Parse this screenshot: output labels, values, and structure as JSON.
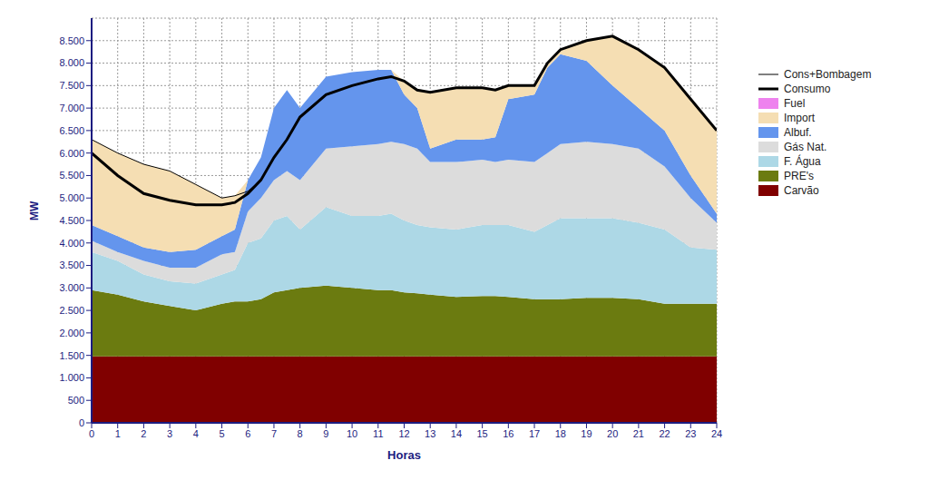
{
  "chart_data": {
    "type": "area",
    "xlabel": "Horas",
    "ylabel": "MW",
    "stacked": true,
    "grid": true,
    "legend": "right",
    "x": [
      0,
      1,
      2,
      3,
      4,
      5,
      5.5,
      6,
      6.5,
      7,
      7.5,
      8,
      9,
      10,
      11,
      11.5,
      12,
      12.5,
      13,
      14,
      15,
      15.5,
      16,
      17,
      17.5,
      18,
      19,
      20,
      21,
      22,
      23,
      24
    ],
    "xlim": [
      0,
      24
    ],
    "xticks": [
      0,
      1,
      2,
      3,
      4,
      5,
      6,
      7,
      8,
      9,
      10,
      11,
      12,
      13,
      14,
      15,
      16,
      17,
      18,
      19,
      20,
      21,
      22,
      23,
      24
    ],
    "ylim": [
      0,
      9000
    ],
    "yticks": [
      0,
      500,
      {
        "value": 1000,
        "label": "1.000"
      },
      {
        "value": 1500,
        "label": "1.500"
      },
      {
        "value": 2000,
        "label": "2.000"
      },
      {
        "value": 2500,
        "label": "2.500"
      },
      {
        "value": 3000,
        "label": "3.000"
      },
      {
        "value": 3500,
        "label": "3.500"
      },
      {
        "value": 4000,
        "label": "4.000"
      },
      {
        "value": 4500,
        "label": "4.500"
      },
      {
        "value": 5000,
        "label": "5.000"
      },
      {
        "value": 5500,
        "label": "5.500"
      },
      {
        "value": 6000,
        "label": "6.000"
      },
      {
        "value": 6500,
        "label": "6.500"
      },
      {
        "value": 7000,
        "label": "7.000"
      },
      {
        "value": 7500,
        "label": "7.500"
      },
      {
        "value": 8000,
        "label": "8.000"
      },
      {
        "value": 8500,
        "label": "8.500"
      }
    ],
    "series": [
      {
        "name": "Carvão",
        "type": "area",
        "color": "#800000",
        "values": [
          1480,
          1480,
          1480,
          1480,
          1480,
          1480,
          1480,
          1480,
          1480,
          1480,
          1480,
          1480,
          1480,
          1480,
          1480,
          1480,
          1480,
          1480,
          1480,
          1480,
          1480,
          1480,
          1480,
          1480,
          1480,
          1480,
          1480,
          1480,
          1480,
          1480,
          1480,
          1480
        ]
      },
      {
        "name": "PRE's",
        "type": "area",
        "color": "#6b7b10",
        "values": [
          1470,
          1370,
          1220,
          1120,
          1020,
          1170,
          1220,
          1220,
          1270,
          1420,
          1470,
          1520,
          1570,
          1520,
          1470,
          1470,
          1420,
          1400,
          1370,
          1320,
          1340,
          1340,
          1320,
          1270,
          1270,
          1270,
          1300,
          1300,
          1270,
          1170,
          1170,
          1170
        ]
      },
      {
        "name": "F. Água",
        "type": "area",
        "color": "#add8e6",
        "values": [
          850,
          750,
          600,
          550,
          600,
          650,
          700,
          1300,
          1350,
          1600,
          1650,
          1300,
          1750,
          1600,
          1650,
          1700,
          1600,
          1520,
          1500,
          1500,
          1580,
          1580,
          1600,
          1500,
          1650,
          1800,
          1770,
          1770,
          1700,
          1650,
          1250,
          1200
        ]
      },
      {
        "name": "Gás Nat.",
        "type": "area",
        "color": "#dcdcdc",
        "values": [
          250,
          200,
          300,
          300,
          350,
          450,
          400,
          700,
          900,
          900,
          1000,
          1100,
          1300,
          1550,
          1600,
          1600,
          1700,
          1700,
          1450,
          1500,
          1450,
          1400,
          1450,
          1550,
          1600,
          1650,
          1700,
          1650,
          1650,
          1400,
          1100,
          600
        ]
      },
      {
        "name": "Albuf.",
        "type": "area",
        "color": "#6495ed",
        "values": [
          350,
          350,
          300,
          350,
          400,
          400,
          500,
          700,
          900,
          1600,
          1800,
          1600,
          1600,
          1650,
          1650,
          1600,
          1100,
          900,
          300,
          500,
          450,
          550,
          1350,
          1500,
          1900,
          2000,
          1800,
          1300,
          900,
          800,
          500,
          200
        ]
      },
      {
        "name": "Import",
        "type": "area",
        "color": "#f5deb3",
        "values": [
          1900,
          1850,
          1850,
          1800,
          1450,
          850,
          750,
          0,
          0,
          0,
          0,
          0,
          0,
          0,
          0,
          0,
          300,
          400,
          1250,
          1150,
          1150,
          1050,
          300,
          200,
          100,
          100,
          450,
          1100,
          1300,
          1400,
          1700,
          1850
        ]
      },
      {
        "name": "Fuel",
        "type": "area",
        "color": "#ee82ee",
        "values": [
          0,
          0,
          0,
          0,
          0,
          0,
          0,
          0,
          0,
          0,
          0,
          0,
          0,
          0,
          0,
          0,
          0,
          0,
          0,
          0,
          0,
          0,
          0,
          0,
          0,
          0,
          0,
          0,
          0,
          0,
          0,
          0
        ]
      },
      {
        "name": "Consumo",
        "type": "line",
        "line_style": "bold",
        "color": "#000000",
        "values": [
          6000,
          5500,
          5100,
          4950,
          4850,
          4850,
          4900,
          5100,
          5400,
          5900,
          6300,
          6800,
          7300,
          7500,
          7650,
          7700,
          7600,
          7400,
          7350,
          7450,
          7450,
          7400,
          7500,
          7500,
          8000,
          8300,
          8500,
          8600,
          8300,
          7900,
          7200,
          6500
        ]
      },
      {
        "name": "Cons+Bombagem",
        "type": "line",
        "line_style": "solid",
        "color": "#000000",
        "values": [
          6300,
          6000,
          5750,
          5600,
          5300,
          5000,
          5050,
          5150,
          5400,
          5900,
          6300,
          6800,
          7300,
          7500,
          7650,
          7700,
          7600,
          7400,
          7350,
          7450,
          7450,
          7400,
          7500,
          7500,
          8000,
          8300,
          8500,
          8600,
          8300,
          7900,
          7200,
          6500
        ]
      }
    ]
  }
}
